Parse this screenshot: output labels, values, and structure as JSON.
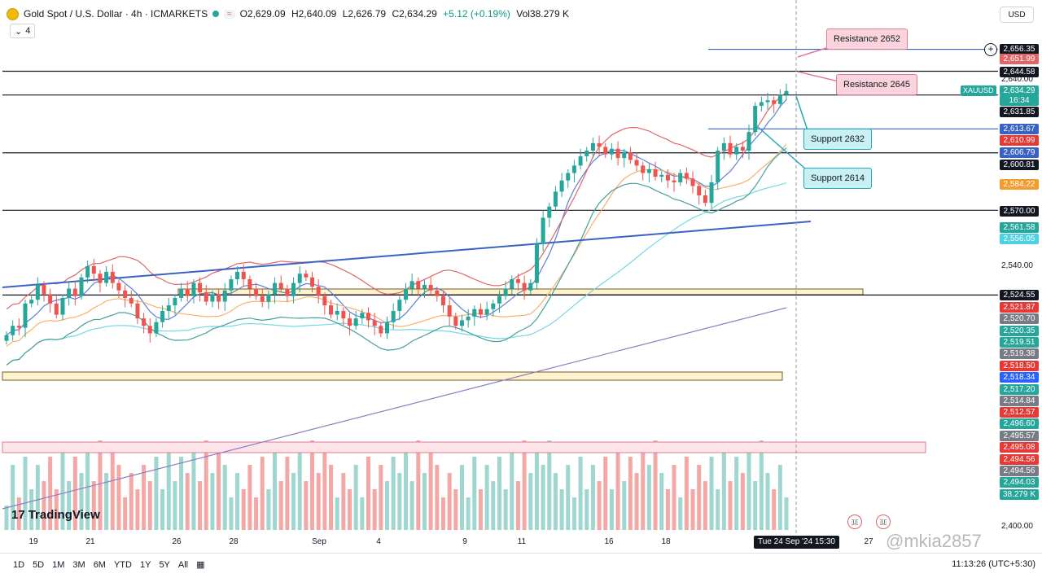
{
  "header": {
    "symbol": "Gold Spot / U.S. Dollar · 4h · ICMARKETS",
    "open": "O2,629.09",
    "high": "H2,640.09",
    "low": "L2,626.79",
    "close": "C2,634.29",
    "change": "+5.12 (+0.19%)",
    "volume": "Vol38.279 K",
    "indicator_count": "4",
    "currency": "USD"
  },
  "colors": {
    "up": "#26a69a",
    "down": "#ef5350",
    "trendline": "#3a62c4",
    "bb_red": "#e06666",
    "ma_blue": "#5b7fd6",
    "ma_orange": "#f6b26b",
    "ma_cyan": "#76d7e4",
    "ma_purple": "#8e7cc3",
    "bb_teal": "#45a09a"
  },
  "annotations": {
    "resistance_2652": "Resistance 2652",
    "resistance_2645": "Resistance 2645",
    "support_2632": "Support 2632",
    "support_2614": "Support 2614"
  },
  "price_axis": {
    "ticks": [
      "2,640.00",
      "2,540.00",
      "2,400.00"
    ],
    "labels": [
      {
        "text": "2,656.35",
        "color": "#131722"
      },
      {
        "text": "2,651.99",
        "color": "#e06666"
      },
      {
        "text": "2,644.58",
        "color": "#131722"
      },
      {
        "text": "2,634.29",
        "color": "#26a69a"
      },
      {
        "text": "16:34",
        "color": "#26a69a"
      },
      {
        "text": "2,631.85",
        "color": "#131722"
      },
      {
        "text": "2,613.67",
        "color": "#3a62c4"
      },
      {
        "text": "2,610.99",
        "color": "#e53935"
      },
      {
        "text": "2,606.79",
        "color": "#3a62c4"
      },
      {
        "text": "2,600.81",
        "color": "#131722"
      },
      {
        "text": "2,584.22",
        "color": "#f59c2f"
      },
      {
        "text": "2,570.00",
        "color": "#131722"
      },
      {
        "text": "2,561.58",
        "color": "#26a69a"
      },
      {
        "text": "2,556.05",
        "color": "#4dd0e1"
      },
      {
        "text": "2,524.55",
        "color": "#131722"
      },
      {
        "text": "2,521.87",
        "color": "#e53935"
      },
      {
        "text": "2,520.70",
        "color": "#787b86"
      },
      {
        "text": "2,520.35",
        "color": "#26a69a"
      },
      {
        "text": "2,519.51",
        "color": "#26a69a"
      },
      {
        "text": "2,519.38",
        "color": "#787b86"
      },
      {
        "text": "2,518.50",
        "color": "#e53935"
      },
      {
        "text": "2,518.34",
        "color": "#2962ff"
      },
      {
        "text": "2,517.20",
        "color": "#26a69a"
      },
      {
        "text": "2,514.84",
        "color": "#787b86"
      },
      {
        "text": "2,512.57",
        "color": "#e53935"
      },
      {
        "text": "2,496.60",
        "color": "#26a69a"
      },
      {
        "text": "2,495.57",
        "color": "#787b86"
      },
      {
        "text": "2,495.08",
        "color": "#e53935"
      },
      {
        "text": "2,494.56",
        "color": "#e53935"
      },
      {
        "text": "2,494.56",
        "color": "#787b86"
      },
      {
        "text": "2,494.03",
        "color": "#26a69a"
      },
      {
        "text": "38.279 K",
        "color": "#26a69a"
      }
    ],
    "symbol_tag": "XAUUSD"
  },
  "time_axis": {
    "labels": [
      "19",
      "21",
      "26",
      "28",
      "Sep",
      "4",
      "9",
      "11",
      "16",
      "18",
      "27"
    ],
    "crosshair": "Tue 24 Sep '24   15:30"
  },
  "bottom": {
    "ranges": [
      "1D",
      "5D",
      "1M",
      "3M",
      "6M",
      "YTD",
      "1Y",
      "5Y",
      "All"
    ],
    "clock": "11:13:26 (UTC+5:30)"
  },
  "branding": {
    "logo_text": "TradingView",
    "watermark": "@mkia2857"
  },
  "chart_data": {
    "type": "candlestick",
    "title": "Gold Spot / U.S. Dollar · 4h · ICMARKETS",
    "horizontal_levels": [
      2656.35,
      2644.58,
      2631.85,
      2613.67,
      2600.81,
      2570.0,
      2524.55
    ],
    "series": [
      {
        "values": [
          2503,
          2508,
          2507,
          2520,
          2522,
          2530,
          2525,
          2520,
          2514,
          2523,
          2528,
          2524,
          2534,
          2540,
          2536,
          2531,
          2537,
          2531,
          2527,
          2523,
          2520,
          2512,
          2508,
          2504,
          2510,
          2516,
          2519,
          2523,
          2528,
          2524,
          2531,
          2526,
          2521,
          2525,
          2521,
          2527,
          2533,
          2537,
          2533,
          2528,
          2524,
          2521,
          2525,
          2531,
          2528,
          2524,
          2531,
          2536,
          2534,
          2529,
          2524,
          2519,
          2514,
          2516,
          2512,
          2508,
          2512,
          2515,
          2511,
          2508,
          2504,
          2510,
          2516,
          2522,
          2528,
          2532,
          2528,
          2530,
          2527,
          2524,
          2519,
          2513,
          2508,
          2511,
          2513,
          2517,
          2514,
          2517,
          2520,
          2524,
          2528,
          2533,
          2531,
          2527,
          2531,
          2552,
          2566,
          2572,
          2580,
          2586,
          2590,
          2594,
          2599,
          2602,
          2606,
          2604,
          2600,
          2603,
          2598,
          2601,
          2597,
          2594,
          2590,
          2592,
          2588,
          2589,
          2586,
          2585,
          2590,
          2587,
          2583,
          2578,
          2574,
          2585,
          2602,
          2606,
          2600,
          2604,
          2602,
          2612,
          2626,
          2628,
          2629,
          2627,
          2632,
          2634
        ]
      }
    ]
  }
}
